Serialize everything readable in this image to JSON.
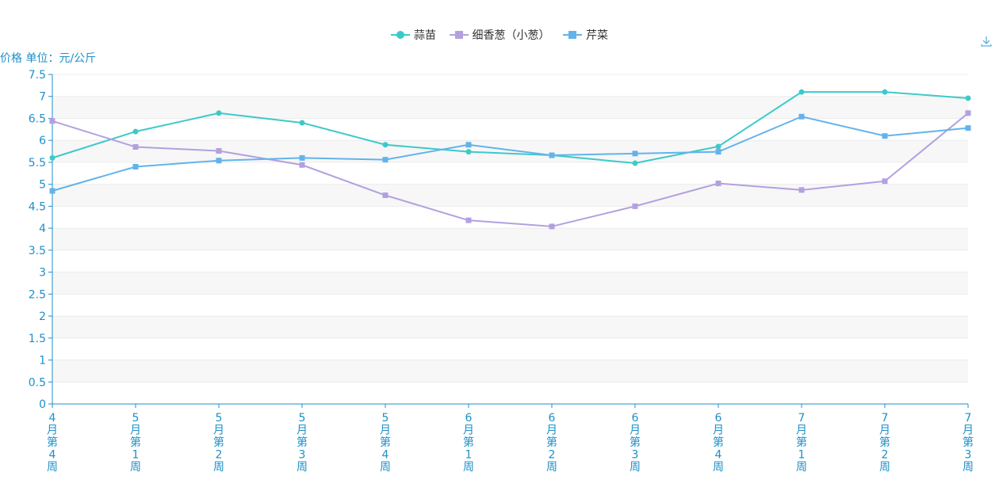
{
  "toolbar": {
    "download_icon": "download-icon"
  },
  "chart_data": {
    "type": "line",
    "ylabel": "价格 单位：元/公斤",
    "ylim": [
      0,
      7.5
    ],
    "yticks": [
      "0",
      "0.5",
      "1",
      "1.5",
      "2",
      "2.5",
      "3",
      "3.5",
      "4",
      "4.5",
      "5",
      "5.5",
      "6",
      "6.5",
      "7",
      "7.5"
    ],
    "categories": [
      [
        "4",
        "月",
        "第",
        "4",
        "周"
      ],
      [
        "5",
        "月",
        "第",
        "1",
        "周"
      ],
      [
        "5",
        "月",
        "第",
        "2",
        "周"
      ],
      [
        "5",
        "月",
        "第",
        "3",
        "周"
      ],
      [
        "5",
        "月",
        "第",
        "4",
        "周"
      ],
      [
        "6",
        "月",
        "第",
        "1",
        "周"
      ],
      [
        "6",
        "月",
        "第",
        "2",
        "周"
      ],
      [
        "6",
        "月",
        "第",
        "3",
        "周"
      ],
      [
        "6",
        "月",
        "第",
        "4",
        "周"
      ],
      [
        "7",
        "月",
        "第",
        "1",
        "周"
      ],
      [
        "7",
        "月",
        "第",
        "2",
        "周"
      ],
      [
        "7",
        "月",
        "第",
        "3",
        "周"
      ]
    ],
    "series": [
      {
        "name": "蒜苗",
        "color": "#3ec9c9",
        "marker": "circle",
        "values": [
          5.6,
          6.2,
          6.62,
          6.4,
          5.9,
          5.74,
          5.66,
          5.48,
          5.86,
          7.1,
          7.1,
          6.96
        ]
      },
      {
        "name": "细香葱（小葱）",
        "color": "#b3a0e0",
        "marker": "square",
        "values": [
          6.44,
          5.85,
          5.76,
          5.44,
          4.75,
          4.18,
          4.04,
          4.5,
          5.02,
          4.87,
          5.07,
          6.62
        ]
      },
      {
        "name": "芹菜",
        "color": "#62b3ec",
        "marker": "square",
        "values": [
          4.85,
          5.4,
          5.54,
          5.6,
          5.56,
          5.9,
          5.66,
          5.7,
          5.74,
          6.54,
          6.1,
          6.28
        ]
      }
    ],
    "grid": true,
    "legend": "top-center"
  }
}
